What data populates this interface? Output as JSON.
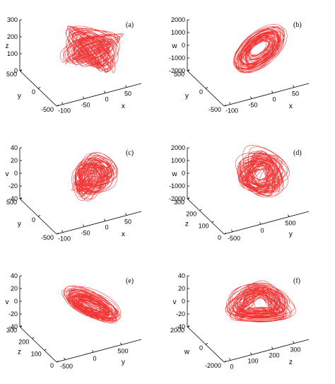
{
  "chart_data": [
    {
      "type": "line",
      "panel_label": "(a)",
      "axes": [
        {
          "label": "x",
          "ticks": [
            "-100",
            "-50",
            "0",
            "50"
          ]
        },
        {
          "label": "y",
          "ticks": [
            "-500",
            "0",
            "500"
          ]
        },
        {
          "label": "z",
          "ticks": [
            "0",
            "100",
            "200",
            "300"
          ]
        }
      ],
      "attractor": {
        "loops": 64,
        "tilt": 0.2,
        "scale": [
          1.0,
          1.0
        ],
        "shape": "cone"
      },
      "color": "#ee1111"
    },
    {
      "type": "line",
      "panel_label": "(b)",
      "axes": [
        {
          "label": "x",
          "ticks": [
            "-100",
            "-50",
            "0",
            "50"
          ]
        },
        {
          "label": "y",
          "ticks": [
            "-500",
            "0",
            "500"
          ]
        },
        {
          "label": "w",
          "ticks": [
            "-2000",
            "-1000",
            "0",
            "1000",
            "2000"
          ]
        }
      ],
      "attractor": {
        "loops": 50,
        "tilt": -0.7,
        "scale": [
          1.0,
          0.55
        ],
        "shape": "ellipse"
      },
      "color": "#ee1111"
    },
    {
      "type": "line",
      "panel_label": "(c)",
      "axes": [
        {
          "label": "x",
          "ticks": [
            "-100",
            "-50",
            "0",
            "50"
          ]
        },
        {
          "label": "y",
          "ticks": [
            "-500",
            "0",
            "500"
          ]
        },
        {
          "label": "v",
          "ticks": [
            "-40",
            "-20",
            "0",
            "20",
            "40"
          ]
        }
      ],
      "attractor": {
        "loops": 56,
        "tilt": -0.75,
        "scale": [
          0.75,
          0.45
        ],
        "shape": "s"
      },
      "color": "#ee1111"
    },
    {
      "type": "line",
      "panel_label": "(d)",
      "axes": [
        {
          "label": "y",
          "ticks": [
            "-500",
            "0",
            "500"
          ]
        },
        {
          "label": "z",
          "ticks": [
            "0",
            "100",
            "200",
            "300"
          ]
        },
        {
          "label": "w",
          "ticks": [
            "-2000",
            "-1000",
            "0",
            "1000",
            "2000"
          ]
        }
      ],
      "attractor": {
        "loops": 60,
        "tilt": 0.45,
        "scale": [
          0.85,
          0.7
        ],
        "shape": "fan"
      },
      "color": "#ee1111"
    },
    {
      "type": "line",
      "panel_label": "(e)",
      "axes": [
        {
          "label": "y",
          "ticks": [
            "-500",
            "0",
            "500"
          ]
        },
        {
          "label": "z",
          "ticks": [
            "0",
            "100",
            "200",
            "300"
          ]
        },
        {
          "label": "v",
          "ticks": [
            "-40",
            "-20",
            "0",
            "20",
            "40"
          ]
        }
      ],
      "attractor": {
        "loops": 60,
        "tilt": 0.45,
        "scale": [
          0.95,
          0.55
        ],
        "shape": "wedge"
      },
      "color": "#ee1111"
    },
    {
      "type": "line",
      "panel_label": "(f)",
      "axes": [
        {
          "label": "z",
          "ticks": [
            "0",
            "100",
            "200",
            "300"
          ]
        },
        {
          "label": "w",
          "ticks": [
            "-2000",
            "0",
            "2000"
          ]
        },
        {
          "label": "v",
          "ticks": [
            "-40",
            "-20",
            "0",
            "20",
            "40"
          ]
        }
      ],
      "attractor": {
        "loops": 60,
        "tilt": 0.0,
        "scale": [
          1.0,
          0.75
        ],
        "shape": "broad"
      },
      "color": "#ee1111"
    }
  ]
}
